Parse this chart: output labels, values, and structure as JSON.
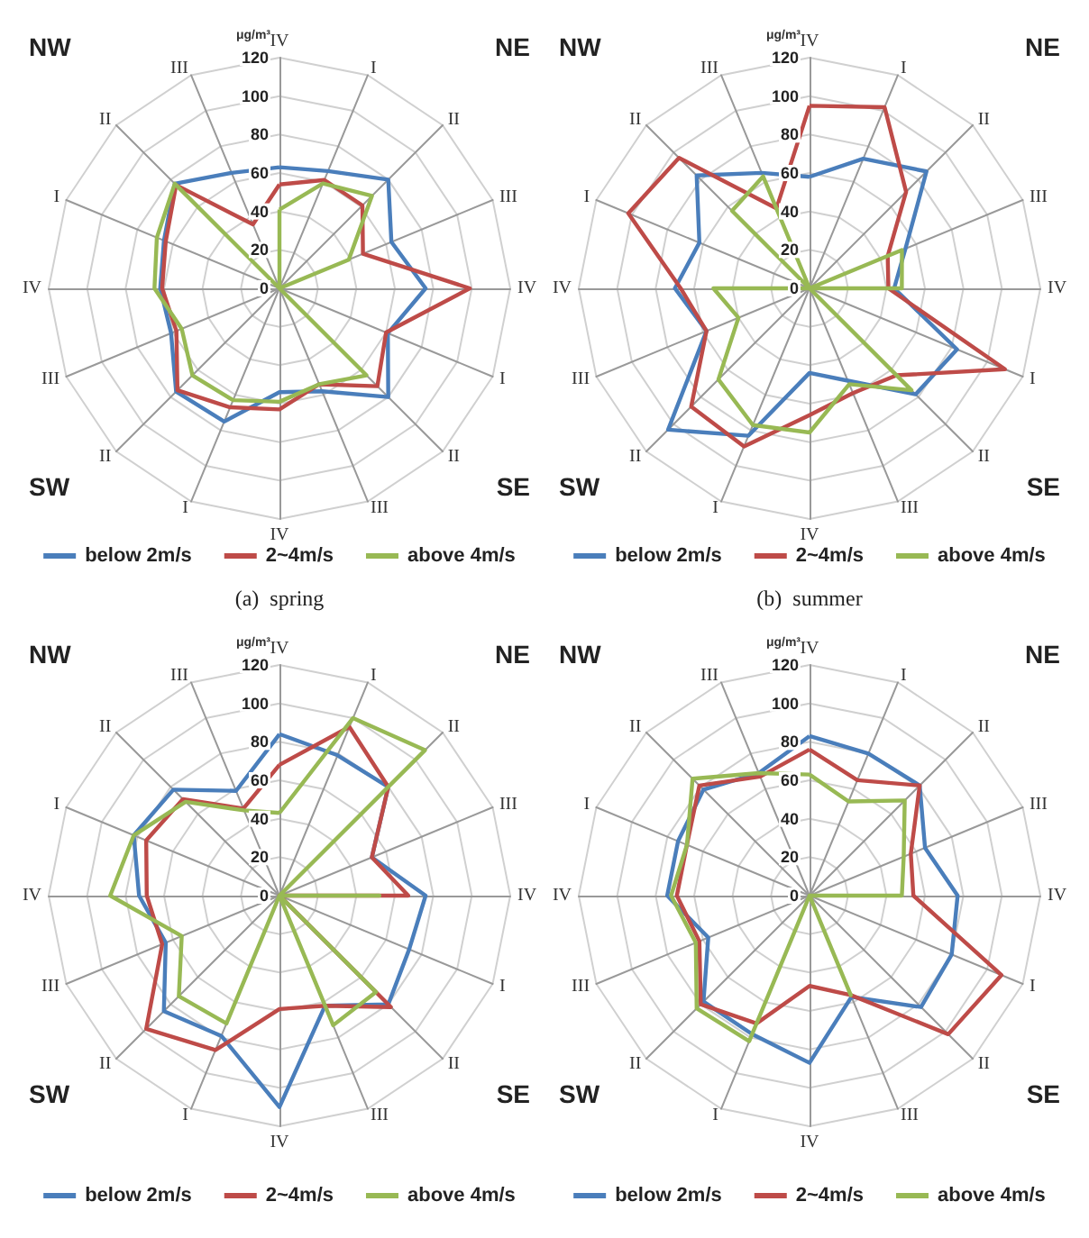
{
  "chart_data": [
    {
      "type": "radar",
      "title": "(a)  spring",
      "ylabel": "μg/m³",
      "annotations": [
        "NW",
        "NE",
        "SW",
        "SE"
      ],
      "categories": [
        "IV",
        "I",
        "II",
        "III",
        "IV",
        "I",
        "II",
        "III",
        "IV",
        "I",
        "II",
        "III",
        "IV",
        "I",
        "II",
        "III"
      ],
      "ylim": [
        0,
        120
      ],
      "yticks": [
        0,
        20,
        40,
        60,
        80,
        100,
        120
      ],
      "grid": true,
      "legend": "bottom",
      "marker": "none",
      "line_style": "solid",
      "series": [
        {
          "name": "below 2m/s",
          "color": "#4a7ebb",
          "values": [
            63,
            66,
            80,
            63,
            76,
            61,
            80,
            58,
            54,
            75,
            76,
            61,
            62,
            65,
            77,
            65
          ]
        },
        {
          "name": "2~4m/s",
          "color": "#be4b48",
          "values": [
            54,
            61,
            61,
            47,
            99,
            60,
            72,
            54,
            63,
            67,
            75,
            58,
            61,
            64,
            76,
            36
          ]
        },
        {
          "name": "above 4m/s",
          "color": "#98b954",
          "values": [
            41,
            59,
            68,
            39,
            0,
            0,
            64,
            54,
            59,
            63,
            64,
            55,
            65,
            69,
            77,
            0
          ]
        }
      ]
    },
    {
      "type": "radar",
      "title": "(b)  summer",
      "ylabel": "μg/m³",
      "annotations": [
        "NW",
        "NE",
        "SW",
        "SE"
      ],
      "categories": [
        "IV",
        "I",
        "II",
        "III",
        "IV",
        "I",
        "II",
        "III",
        "IV",
        "I",
        "II",
        "III",
        "IV",
        "I",
        "II",
        "III"
      ],
      "ylim": [
        0,
        120
      ],
      "yticks": [
        0,
        20,
        40,
        60,
        80,
        100,
        120
      ],
      "grid": true,
      "legend": "bottom",
      "marker": "none",
      "line_style": "solid",
      "series": [
        {
          "name": "below 2m/s",
          "color": "#4a7ebb",
          "values": [
            58,
            73,
            86,
            54,
            44,
            83,
            78,
            52,
            44,
            83,
            104,
            58,
            70,
            62,
            83,
            65
          ]
        },
        {
          "name": "2~4m/s",
          "color": "#be4b48",
          "values": [
            95,
            102,
            71,
            44,
            41,
            110,
            64,
            59,
            66,
            89,
            87,
            58,
            67,
            102,
            96,
            45
          ]
        },
        {
          "name": "above 4m/s",
          "color": "#98b954",
          "values": [
            0,
            0,
            0,
            52,
            48,
            0,
            75,
            54,
            75,
            77,
            67,
            40,
            50,
            0,
            57,
            63
          ]
        }
      ]
    },
    {
      "type": "radar",
      "ylabel": "μg/m³",
      "annotations": [
        "NW",
        "NE",
        "SW",
        "SE"
      ],
      "categories": [
        "IV",
        "I",
        "II",
        "III",
        "IV",
        "I",
        "II",
        "III",
        "IV",
        "I",
        "II",
        "III",
        "IV",
        "I",
        "II",
        "III"
      ],
      "ylim": [
        0,
        120
      ],
      "yticks": [
        0,
        20,
        40,
        60,
        80,
        100,
        120
      ],
      "grid": true,
      "legend": "bottom",
      "marker": "none",
      "line_style": "solid",
      "series": [
        {
          "name": "below 2m/s",
          "color": "#4a7ebb",
          "values": [
            84,
            79,
            80,
            52,
            76,
            73,
            80,
            62,
            110,
            79,
            85,
            64,
            73,
            82,
            78,
            59
          ]
        },
        {
          "name": "2~4m/s",
          "color": "#be4b48",
          "values": [
            68,
            95,
            80,
            52,
            67,
            0,
            82,
            62,
            59,
            87,
            98,
            66,
            69,
            75,
            71,
            49
          ]
        },
        {
          "name": "above 4m/s",
          "color": "#98b954",
          "values": [
            43,
            100,
            107,
            0,
            52,
            0,
            71,
            73,
            0,
            72,
            74,
            55,
            88,
            82,
            69,
            48
          ]
        }
      ]
    },
    {
      "type": "radar",
      "ylabel": "μg/m³",
      "annotations": [
        "NW",
        "NE",
        "SW",
        "SE"
      ],
      "categories": [
        "IV",
        "I",
        "II",
        "III",
        "IV",
        "I",
        "II",
        "III",
        "IV",
        "I",
        "II",
        "III",
        "IV",
        "I",
        "II",
        "III"
      ],
      "ylim": [
        0,
        120
      ],
      "yticks": [
        0,
        20,
        40,
        60,
        80,
        100,
        120
      ],
      "grid": true,
      "legend": "bottom",
      "marker": "none",
      "line_style": "solid",
      "series": [
        {
          "name": "below 2m/s",
          "color": "#4a7ebb",
          "values": [
            83,
            80,
            81,
            65,
            77,
            80,
            82,
            57,
            87,
            78,
            78,
            57,
            74,
            74,
            78,
            69
          ]
        },
        {
          "name": "2~4m/s",
          "color": "#be4b48",
          "values": [
            76,
            65,
            81,
            57,
            54,
            108,
            102,
            56,
            47,
            72,
            80,
            62,
            69,
            69,
            81,
            67
          ]
        },
        {
          "name": "above 4m/s",
          "color": "#98b954",
          "values": [
            63,
            53,
            70,
            53,
            48,
            0,
            0,
            56,
            0,
            82,
            83,
            64,
            72,
            69,
            86,
            69
          ]
        }
      ]
    }
  ]
}
